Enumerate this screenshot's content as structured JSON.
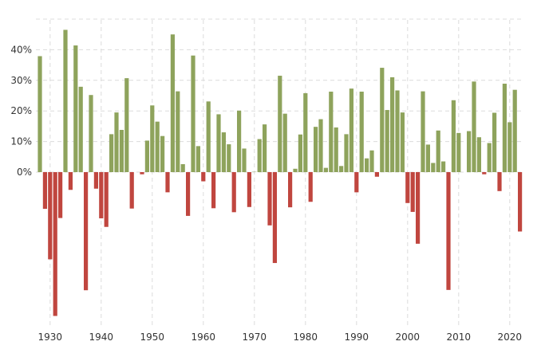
{
  "chart_data": {
    "type": "bar",
    "title": "",
    "xlabel": "",
    "ylabel": "",
    "colors": {
      "positive": "#8ea35c",
      "negative": "#c0463f",
      "grid": "#dcdcdc",
      "axis_text": "#333333"
    },
    "grid": true,
    "ylim": [
      -50,
      50
    ],
    "y_ticks": [
      {
        "value": 0,
        "label": "0%"
      },
      {
        "value": 10,
        "label": "10%"
      },
      {
        "value": 20,
        "label": "20%"
      },
      {
        "value": 30,
        "label": "30%"
      },
      {
        "value": 40,
        "label": "40%"
      }
    ],
    "x_ticks": [
      {
        "value": 1930,
        "label": "1930"
      },
      {
        "value": 1940,
        "label": "1940"
      },
      {
        "value": 1950,
        "label": "1950"
      },
      {
        "value": 1960,
        "label": "1960"
      },
      {
        "value": 1970,
        "label": "1970"
      },
      {
        "value": 1980,
        "label": "1980"
      },
      {
        "value": 1990,
        "label": "1990"
      },
      {
        "value": 2000,
        "label": "2000"
      },
      {
        "value": 2010,
        "label": "2010"
      },
      {
        "value": 2020,
        "label": "2020"
      }
    ],
    "x": [
      1928,
      1929,
      1930,
      1931,
      1932,
      1933,
      1934,
      1935,
      1936,
      1937,
      1938,
      1939,
      1940,
      1941,
      1942,
      1943,
      1944,
      1945,
      1946,
      1947,
      1948,
      1949,
      1950,
      1951,
      1952,
      1953,
      1954,
      1955,
      1956,
      1957,
      1958,
      1959,
      1960,
      1961,
      1962,
      1963,
      1964,
      1965,
      1966,
      1967,
      1968,
      1969,
      1970,
      1971,
      1972,
      1973,
      1974,
      1975,
      1976,
      1977,
      1978,
      1979,
      1980,
      1981,
      1982,
      1983,
      1984,
      1985,
      1986,
      1987,
      1988,
      1989,
      1990,
      1991,
      1992,
      1993,
      1994,
      1995,
      1996,
      1997,
      1998,
      1999,
      2000,
      2001,
      2002,
      2003,
      2004,
      2005,
      2006,
      2007,
      2008,
      2009,
      2010,
      2011,
      2012,
      2013,
      2014,
      2015,
      2016,
      2017,
      2018,
      2019,
      2020,
      2021,
      2022
    ],
    "values": [
      37.9,
      -12.0,
      -28.5,
      -47.0,
      -15.0,
      46.5,
      -5.8,
      41.4,
      27.9,
      -38.6,
      25.2,
      -5.4,
      -15.1,
      -17.9,
      12.4,
      19.5,
      13.8,
      30.7,
      -11.9,
      0.0,
      -0.7,
      10.3,
      21.8,
      16.5,
      11.8,
      -6.6,
      45.0,
      26.4,
      2.6,
      -14.3,
      38.1,
      8.5,
      -3.0,
      23.1,
      -11.8,
      18.9,
      13.0,
      9.1,
      -13.1,
      20.1,
      7.7,
      -11.4,
      0.1,
      10.8,
      15.6,
      -17.4,
      -29.7,
      31.5,
      19.1,
      -11.5,
      1.1,
      12.3,
      25.8,
      -9.7,
      14.8,
      17.3,
      1.4,
      26.3,
      14.6,
      2.0,
      12.4,
      27.3,
      -6.6,
      26.3,
      4.5,
      7.1,
      -1.5,
      34.1,
      20.3,
      31.0,
      26.7,
      19.5,
      -10.1,
      -13.0,
      -23.4,
      26.4,
      9.0,
      3.0,
      13.6,
      3.5,
      -38.5,
      23.5,
      12.8,
      0.0,
      13.4,
      29.6,
      11.4,
      -0.7,
      9.5,
      19.4,
      -6.2,
      28.9,
      16.3,
      26.9,
      -19.4
    ]
  }
}
